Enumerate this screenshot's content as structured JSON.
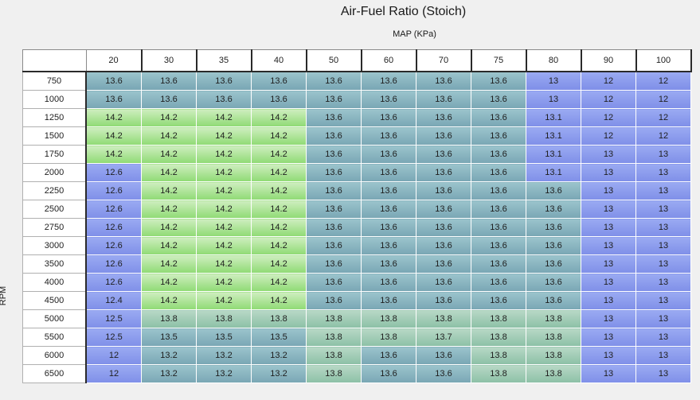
{
  "title": "Air-Fuel Ratio (Stoich)",
  "x_axis_label": "MAP (KPa)",
  "y_axis_label": "RPM",
  "columns": [
    "20",
    "30",
    "35",
    "40",
    "50",
    "60",
    "70",
    "75",
    "80",
    "90",
    "100"
  ],
  "rows": [
    {
      "rpm": "750",
      "values": [
        "13.6",
        "13.6",
        "13.6",
        "13.6",
        "13.6",
        "13.6",
        "13.6",
        "13.6",
        "13",
        "12",
        "12"
      ]
    },
    {
      "rpm": "1000",
      "values": [
        "13.6",
        "13.6",
        "13.6",
        "13.6",
        "13.6",
        "13.6",
        "13.6",
        "13.6",
        "13",
        "12",
        "12"
      ]
    },
    {
      "rpm": "1250",
      "values": [
        "14.2",
        "14.2",
        "14.2",
        "14.2",
        "13.6",
        "13.6",
        "13.6",
        "13.6",
        "13.1",
        "12",
        "12"
      ]
    },
    {
      "rpm": "1500",
      "values": [
        "14.2",
        "14.2",
        "14.2",
        "14.2",
        "13.6",
        "13.6",
        "13.6",
        "13.6",
        "13.1",
        "12",
        "12"
      ]
    },
    {
      "rpm": "1750",
      "values": [
        "14.2",
        "14.2",
        "14.2",
        "14.2",
        "13.6",
        "13.6",
        "13.6",
        "13.6",
        "13.1",
        "13",
        "13"
      ]
    },
    {
      "rpm": "2000",
      "values": [
        "12.6",
        "14.2",
        "14.2",
        "14.2",
        "13.6",
        "13.6",
        "13.6",
        "13.6",
        "13.1",
        "13",
        "13"
      ]
    },
    {
      "rpm": "2250",
      "values": [
        "12.6",
        "14.2",
        "14.2",
        "14.2",
        "13.6",
        "13.6",
        "13.6",
        "13.6",
        "13.6",
        "13",
        "13"
      ]
    },
    {
      "rpm": "2500",
      "values": [
        "12.6",
        "14.2",
        "14.2",
        "14.2",
        "13.6",
        "13.6",
        "13.6",
        "13.6",
        "13.6",
        "13",
        "13"
      ]
    },
    {
      "rpm": "2750",
      "values": [
        "12.6",
        "14.2",
        "14.2",
        "14.2",
        "13.6",
        "13.6",
        "13.6",
        "13.6",
        "13.6",
        "13",
        "13"
      ]
    },
    {
      "rpm": "3000",
      "values": [
        "12.6",
        "14.2",
        "14.2",
        "14.2",
        "13.6",
        "13.6",
        "13.6",
        "13.6",
        "13.6",
        "13",
        "13"
      ]
    },
    {
      "rpm": "3500",
      "values": [
        "12.6",
        "14.2",
        "14.2",
        "14.2",
        "13.6",
        "13.6",
        "13.6",
        "13.6",
        "13.6",
        "13",
        "13"
      ]
    },
    {
      "rpm": "4000",
      "values": [
        "12.6",
        "14.2",
        "14.2",
        "14.2",
        "13.6",
        "13.6",
        "13.6",
        "13.6",
        "13.6",
        "13",
        "13"
      ]
    },
    {
      "rpm": "4500",
      "values": [
        "12.4",
        "14.2",
        "14.2",
        "14.2",
        "13.6",
        "13.6",
        "13.6",
        "13.6",
        "13.6",
        "13",
        "13"
      ]
    },
    {
      "rpm": "5000",
      "values": [
        "12.5",
        "13.8",
        "13.8",
        "13.8",
        "13.8",
        "13.8",
        "13.8",
        "13.8",
        "13.8",
        "13",
        "13"
      ]
    },
    {
      "rpm": "5500",
      "values": [
        "12.5",
        "13.5",
        "13.5",
        "13.5",
        "13.8",
        "13.8",
        "13.7",
        "13.8",
        "13.8",
        "13",
        "13"
      ]
    },
    {
      "rpm": "6000",
      "values": [
        "12",
        "13.2",
        "13.2",
        "13.2",
        "13.8",
        "13.6",
        "13.6",
        "13.8",
        "13.8",
        "13",
        "13"
      ]
    },
    {
      "rpm": "6500",
      "values": [
        "12",
        "13.2",
        "13.2",
        "13.2",
        "13.8",
        "13.6",
        "13.6",
        "13.8",
        "13.8",
        "13",
        "13"
      ]
    }
  ],
  "colors": {
    "blue_low": "#8a9aee",
    "teal_mid": "#8ab5c0",
    "sea_high": "#a2cdb6",
    "green_rich": "#aee49a"
  }
}
